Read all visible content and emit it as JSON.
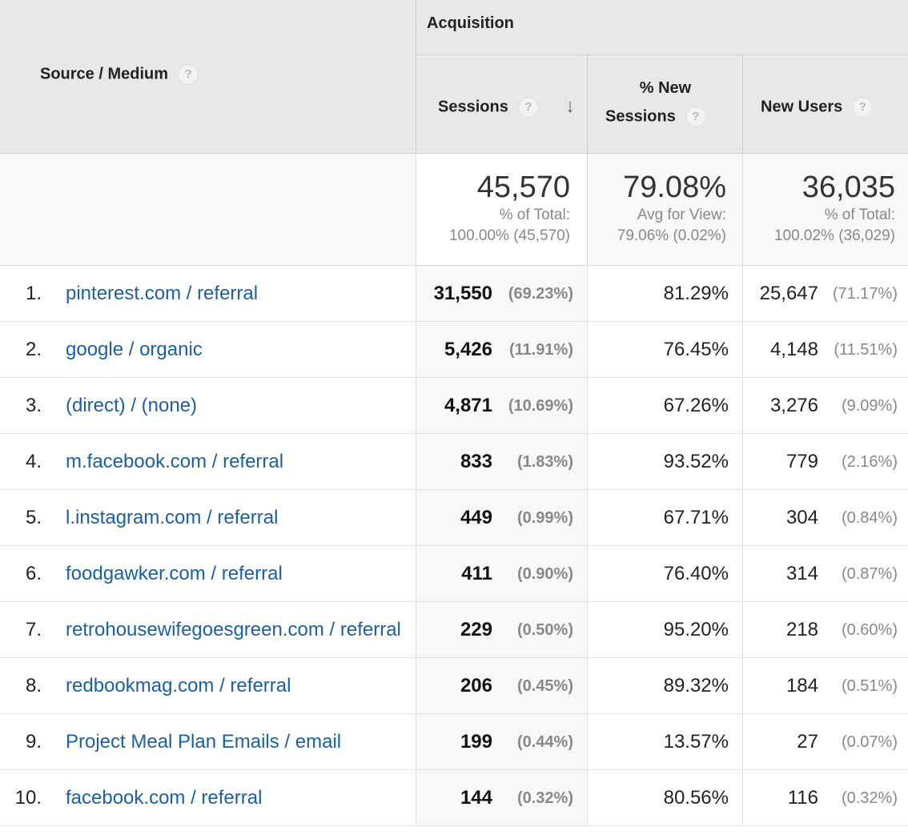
{
  "header": {
    "source_medium": "Source / Medium",
    "help_glyph": "?",
    "acquisition": "Acquisition",
    "sessions": "Sessions",
    "sort_arrow": "↓",
    "new_sessions_line1": "% New",
    "new_sessions_line2": "Sessions",
    "new_users": "New Users"
  },
  "totals": {
    "sessions": {
      "value": "45,570",
      "label": "% of Total:",
      "detail": "100.00% (45,570)"
    },
    "new_sessions": {
      "value": "79.08%",
      "label": "Avg for View:",
      "detail": "79.06% (0.02%)"
    },
    "new_users": {
      "value": "36,035",
      "label": "% of Total:",
      "detail": "100.02% (36,029)"
    }
  },
  "rows": [
    {
      "num": "1.",
      "source": "pinterest.com / referral",
      "sessions": "31,550",
      "sessions_pct": "(69.23%)",
      "new_sessions": "81.29%",
      "new_users": "25,647",
      "new_users_pct": "(71.17%)"
    },
    {
      "num": "2.",
      "source": "google / organic",
      "sessions": "5,426",
      "sessions_pct": "(11.91%)",
      "new_sessions": "76.45%",
      "new_users": "4,148",
      "new_users_pct": "(11.51%)"
    },
    {
      "num": "3.",
      "source": "(direct) / (none)",
      "sessions": "4,871",
      "sessions_pct": "(10.69%)",
      "new_sessions": "67.26%",
      "new_users": "3,276",
      "new_users_pct": "(9.09%)"
    },
    {
      "num": "4.",
      "source": "m.facebook.com / referral",
      "sessions": "833",
      "sessions_pct": "(1.83%)",
      "new_sessions": "93.52%",
      "new_users": "779",
      "new_users_pct": "(2.16%)"
    },
    {
      "num": "5.",
      "source": "l.instagram.com / referral",
      "sessions": "449",
      "sessions_pct": "(0.99%)",
      "new_sessions": "67.71%",
      "new_users": "304",
      "new_users_pct": "(0.84%)"
    },
    {
      "num": "6.",
      "source": "foodgawker.com / referral",
      "sessions": "411",
      "sessions_pct": "(0.90%)",
      "new_sessions": "76.40%",
      "new_users": "314",
      "new_users_pct": "(0.87%)"
    },
    {
      "num": "7.",
      "source": "retrohousewifegoesgreen.com / referral",
      "sessions": "229",
      "sessions_pct": "(0.50%)",
      "new_sessions": "95.20%",
      "new_users": "218",
      "new_users_pct": "(0.60%)"
    },
    {
      "num": "8.",
      "source": "redbookmag.com / referral",
      "sessions": "206",
      "sessions_pct": "(0.45%)",
      "new_sessions": "89.32%",
      "new_users": "184",
      "new_users_pct": "(0.51%)"
    },
    {
      "num": "9.",
      "source": "Project Meal Plan Emails / email",
      "sessions": "199",
      "sessions_pct": "(0.44%)",
      "new_sessions": "13.57%",
      "new_users": "27",
      "new_users_pct": "(0.07%)"
    },
    {
      "num": "10.",
      "source": "facebook.com / referral",
      "sessions": "144",
      "sessions_pct": "(0.32%)",
      "new_sessions": "80.56%",
      "new_users": "116",
      "new_users_pct": "(0.32%)"
    }
  ]
}
